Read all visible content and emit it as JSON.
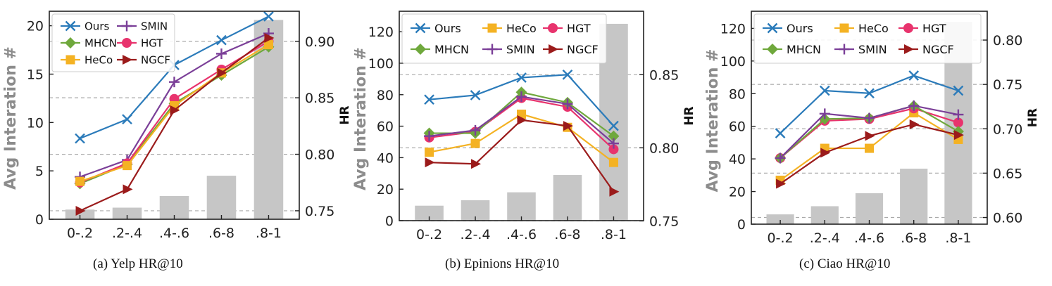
{
  "chart_data": [
    {
      "type": "bar+line",
      "caption": "(a)  Yelp HR@10",
      "categories": [
        "0-.2",
        ".2-.4",
        ".4-.6",
        ".6-8",
        ".8-1"
      ],
      "bars": {
        "name": "Avg Interation #",
        "values": [
          1.0,
          1.2,
          2.4,
          4.5,
          20.6
        ]
      },
      "ylabel_left": "Avg Interation #",
      "ylim_left": [
        0,
        21.5
      ],
      "yticks_left": [
        0,
        5,
        10,
        15,
        20
      ],
      "ylabel_right": "HR",
      "ylim_right": [
        0.7425,
        0.9266
      ],
      "yticks_right": [
        0.75,
        0.8,
        0.85,
        0.9
      ],
      "ytick_labels_right": [
        "0.75",
        "0.80",
        "0.85",
        "0.90"
      ],
      "legend_ncol": 2,
      "series": [
        {
          "name": "Ours",
          "color": "#2b7bba",
          "marker": "x",
          "values": [
            0.814,
            0.831,
            0.879,
            0.901,
            0.922
          ]
        },
        {
          "name": "SMIN",
          "color": "#7b3f98",
          "marker": "plus",
          "values": [
            0.78,
            0.795,
            0.864,
            0.889,
            0.907
          ]
        },
        {
          "name": "MHCN",
          "color": "#6fa83c",
          "marker": "diamond",
          "values": [
            0.774,
            0.791,
            0.845,
            0.87,
            0.895
          ]
        },
        {
          "name": "HGT",
          "color": "#e8336d",
          "marker": "circle",
          "values": [
            0.775,
            0.792,
            0.849,
            0.875,
            0.9
          ]
        },
        {
          "name": "HeCo",
          "color": "#f4b223",
          "marker": "square",
          "values": [
            0.776,
            0.79,
            0.843,
            0.872,
            0.897
          ]
        },
        {
          "name": "NGCF",
          "color": "#9b1b1b",
          "marker": "triangle",
          "values": [
            0.75,
            0.769,
            0.839,
            0.872,
            0.903
          ]
        }
      ],
      "legend_order": [
        "Ours",
        "SMIN",
        "MHCN",
        "HGT",
        "HeCo",
        "NGCF"
      ]
    },
    {
      "type": "bar+line",
      "caption": "(b)  Epinions HR@10",
      "categories": [
        "0-.2",
        ".2-.4",
        ".4-.6",
        ".6-8",
        ".8-1"
      ],
      "bars": {
        "name": "Avg Interation #",
        "values": [
          9.5,
          13.0,
          18.0,
          29.0,
          125.0
        ]
      },
      "ylabel_left": "Avg Interation #",
      "ylim_left": [
        0,
        133
      ],
      "yticks_left": [
        0,
        20,
        40,
        60,
        80,
        100,
        120
      ],
      "ylabel_right": "HR",
      "ylim_right": [
        0.7502,
        0.8934
      ],
      "yticks_right": [
        0.75,
        0.8,
        0.85
      ],
      "ytick_labels_right": [
        "0.75",
        "0.80",
        "0.85"
      ],
      "legend_ncol": 3,
      "series": [
        {
          "name": "Ours",
          "color": "#2b7bba",
          "marker": "x",
          "values": [
            0.833,
            0.836,
            0.848,
            0.85,
            0.815
          ]
        },
        {
          "name": "HeCo",
          "color": "#f4b223",
          "marker": "square",
          "values": [
            0.797,
            0.803,
            0.823,
            0.814,
            0.79
          ]
        },
        {
          "name": "HGT",
          "color": "#e8336d",
          "marker": "circle",
          "values": [
            0.807,
            0.811,
            0.834,
            0.828,
            0.799
          ]
        },
        {
          "name": "MHCN",
          "color": "#6fa83c",
          "marker": "diamond",
          "values": [
            0.81,
            0.81,
            0.838,
            0.831,
            0.808
          ]
        },
        {
          "name": "SMIN",
          "color": "#7b3f98",
          "marker": "plus",
          "values": [
            0.808,
            0.812,
            0.835,
            0.83,
            0.803
          ]
        },
        {
          "name": "NGCF",
          "color": "#9b1b1b",
          "marker": "triangle",
          "values": [
            0.79,
            0.789,
            0.819,
            0.815,
            0.77
          ]
        }
      ],
      "legend_order": [
        "Ours",
        "HeCo",
        "HGT",
        "MHCN",
        "SMIN",
        "NGCF"
      ]
    },
    {
      "type": "bar+line",
      "caption": "(c)  Ciao HR@10",
      "categories": [
        "0-.2",
        ".2-.4",
        ".4-.6",
        ".6-8",
        ".8-1"
      ],
      "bars": {
        "name": "Avg Interation #",
        "values": [
          6.0,
          11.0,
          19.0,
          34.0,
          124.0
        ]
      },
      "ylabel_left": "Avg Interation #",
      "ylim_left": [
        0,
        130.5
      ],
      "yticks_left": [
        0,
        20,
        40,
        60,
        80,
        100,
        120
      ],
      "ylabel_right": "HR",
      "ylim_right": [
        0.5925,
        0.8325
      ],
      "yticks_right": [
        0.6,
        0.65,
        0.7,
        0.75,
        0.8
      ],
      "ytick_labels_right": [
        "0.60",
        "0.65",
        "0.70",
        "0.75",
        "0.80"
      ],
      "legend_ncol": 3,
      "series": [
        {
          "name": "Ours",
          "color": "#2b7bba",
          "marker": "x",
          "values": [
            0.695,
            0.743,
            0.74,
            0.76,
            0.743
          ]
        },
        {
          "name": "HeCo",
          "color": "#f4b223",
          "marker": "square",
          "values": [
            0.642,
            0.678,
            0.678,
            0.718,
            0.688
          ]
        },
        {
          "name": "HGT",
          "color": "#e8336d",
          "marker": "circle",
          "values": [
            0.667,
            0.709,
            0.711,
            0.723,
            0.707
          ]
        },
        {
          "name": "MHCN",
          "color": "#6fa83c",
          "marker": "diamond",
          "values": [
            0.667,
            0.711,
            0.712,
            0.726,
            0.697
          ]
        },
        {
          "name": "SMIN",
          "color": "#7b3f98",
          "marker": "plus",
          "values": [
            0.667,
            0.717,
            0.712,
            0.726,
            0.716
          ]
        },
        {
          "name": "NGCF",
          "color": "#9b1b1b",
          "marker": "triangle",
          "values": [
            0.638,
            0.673,
            0.692,
            0.705,
            0.693
          ]
        }
      ],
      "legend_order": [
        "Ours",
        "HeCo",
        "HGT",
        "MHCN",
        "SMIN",
        "NGCF"
      ]
    }
  ]
}
